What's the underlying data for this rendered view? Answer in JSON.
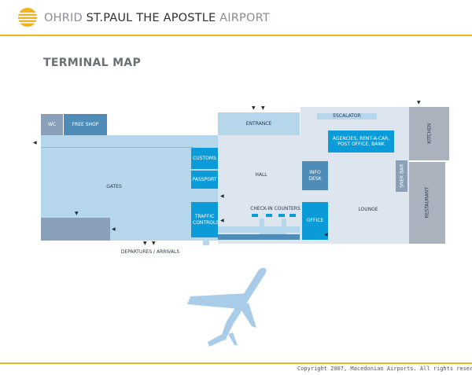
{
  "header": {
    "airport_prefix": "OHRID ",
    "airport_name": "ST.PAUL THE APOSTLE",
    "airport_suffix": " AIRPORT",
    "logo_icon": "airport-logo-icon"
  },
  "page": {
    "title": "TERMINAL MAP"
  },
  "map": {
    "wc": "WC",
    "free_shop": "FREE SHOP",
    "gates": "GATES",
    "customs": "CUSTOMS",
    "passport": "PASSPORT",
    "traffic_controls": "TRAFFIC CONTROLS",
    "entrance": "ENTRANCE",
    "hall": "HALL",
    "info_desk": "INFO DESK",
    "check_in": "CHECK-IN COUNTERS",
    "office": "OFFICE",
    "escalator": "ESCALATOR",
    "agencies": "AGENCIES, RENT-A-CAR, POST OFFICE, BANK",
    "lounge": "LOUNGE",
    "snek_bar": "SNEK BAR",
    "kitchen": "KITCHEN",
    "restaurant": "RESTAURANT",
    "departures_arrivals": "DEPARTURES / ARRIVALS",
    "airplane_icon": "airplane-icon"
  },
  "footer": {
    "copyright": "Copyright 2007, Macedonian Airports. All rights reserved."
  },
  "colors": {
    "accent": "#f2b418",
    "light_blue": "#b6d6ec",
    "pale": "#dde5ee",
    "medium_blue": "#4f8db8",
    "bright_blue": "#0b9bd8",
    "slate": "#8a9fb8",
    "gray": "#a9b2bd"
  }
}
